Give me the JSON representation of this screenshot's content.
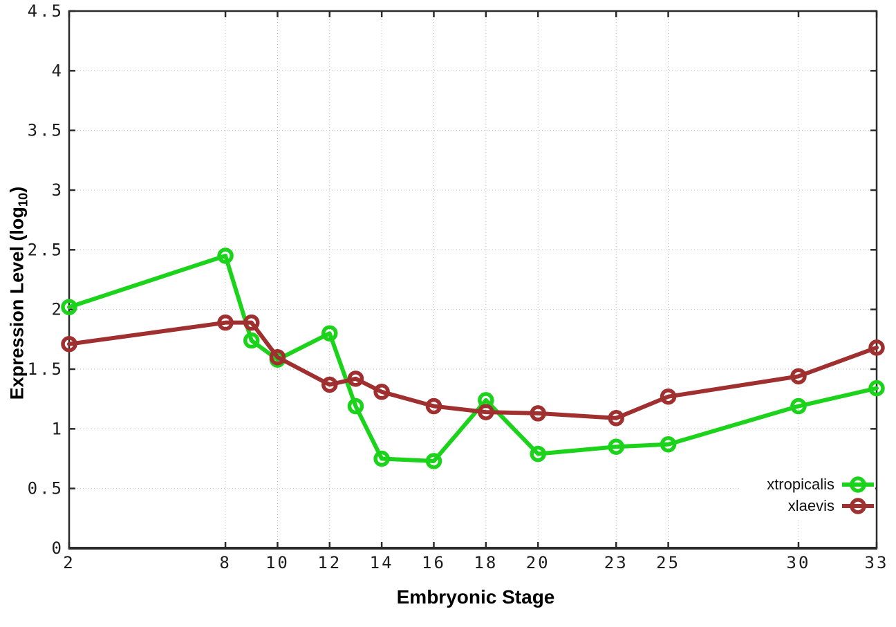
{
  "chart_data": {
    "type": "line",
    "xlabel": "Embryonic Stage",
    "ylabel": "Expression Level (log10)",
    "ylabel_parts": {
      "main": "Expression Level (log",
      "sub": "10",
      "close": ")"
    },
    "x": [
      2,
      8,
      9,
      10,
      12,
      13,
      14,
      16,
      18,
      20,
      23,
      25,
      30,
      33
    ],
    "x_ticks": [
      2,
      8,
      10,
      12,
      14,
      16,
      18,
      20,
      23,
      25,
      30,
      33
    ],
    "xlim": [
      2,
      33
    ],
    "y_ticks": [
      0,
      0.5,
      1,
      1.5,
      2,
      2.5,
      3,
      3.5,
      4,
      4.5
    ],
    "ylim": [
      0,
      4.5
    ],
    "grid": true,
    "legend_position": "inside-bottom-right",
    "series": [
      {
        "name": "xtropicalis",
        "color": "#1bd31b",
        "values": [
          2.02,
          2.45,
          1.74,
          1.58,
          1.8,
          1.19,
          0.75,
          0.73,
          1.24,
          0.79,
          0.85,
          0.87,
          1.19,
          1.34
        ]
      },
      {
        "name": "xlaevis",
        "color": "#a02f2f",
        "values": [
          1.71,
          1.89,
          1.89,
          1.6,
          1.37,
          1.42,
          1.31,
          1.19,
          1.14,
          1.13,
          1.09,
          1.27,
          1.44,
          1.68
        ]
      }
    ]
  }
}
